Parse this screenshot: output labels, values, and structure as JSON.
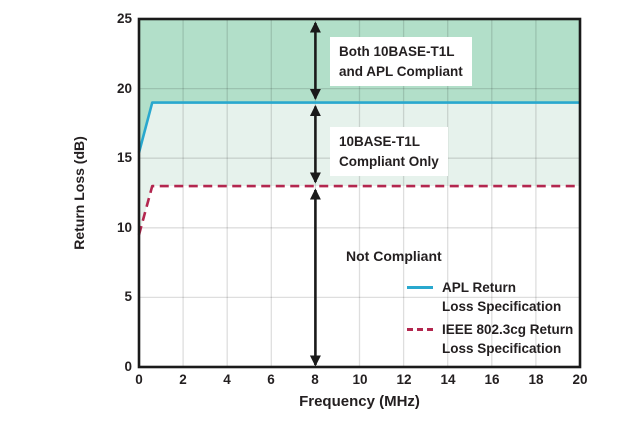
{
  "chart_data": {
    "type": "line",
    "title": "",
    "xlabel": "Frequency (MHz)",
    "ylabel": "Return Loss (dB)",
    "xlim": [
      0,
      20
    ],
    "ylim": [
      0,
      25
    ],
    "xticks": [
      0,
      2,
      4,
      6,
      8,
      10,
      12,
      14,
      16,
      18,
      20
    ],
    "yticks": [
      0,
      5,
      10,
      15,
      20,
      25
    ],
    "grid": true,
    "legend_position": "bottom-right-inside",
    "colors": {
      "apl_line": "#29a8ce",
      "ieee_line": "#b3274f",
      "region_both_compliant": "#b2dfc9",
      "region_t1l_only": "#e6f2ec",
      "region_not_compliant": "#ffffff",
      "axis": "#1a1a1a",
      "arrow": "#1a1a1a"
    },
    "series": [
      {
        "name": "APL Return Loss Specification",
        "label_lines": [
          "APL Return",
          "Loss Specification"
        ],
        "style": "solid",
        "color": "#29a8ce",
        "points": [
          [
            0,
            15.4
          ],
          [
            0.6,
            19
          ],
          [
            20,
            19
          ]
        ]
      },
      {
        "name": "IEEE 802.3cg Return Loss Specification",
        "label_lines": [
          "IEEE 802.3cg Return",
          "Loss Specification"
        ],
        "style": "dashed",
        "color": "#b3274f",
        "points": [
          [
            0,
            9.5
          ],
          [
            0.6,
            13
          ],
          [
            20,
            13
          ]
        ]
      }
    ],
    "regions": [
      {
        "label_lines": [
          "Both 10BASE-T1L",
          "and APL Compliant"
        ],
        "between": [
          "series0",
          "ymax"
        ],
        "fill": "#b2dfc9"
      },
      {
        "label_lines": [
          "10BASE-T1L",
          "Compliant Only"
        ],
        "between": [
          "series1",
          "series0"
        ],
        "fill": "#e6f2ec"
      },
      {
        "label_lines": [
          "Not Compliant"
        ],
        "between": [
          "ymin",
          "series1"
        ],
        "fill": "#ffffff"
      }
    ],
    "annotation_arrows": {
      "x": 8,
      "spans_dB": [
        [
          19,
          25
        ],
        [
          13,
          19
        ],
        [
          0,
          13
        ]
      ],
      "color": "#1a1a1a"
    }
  }
}
